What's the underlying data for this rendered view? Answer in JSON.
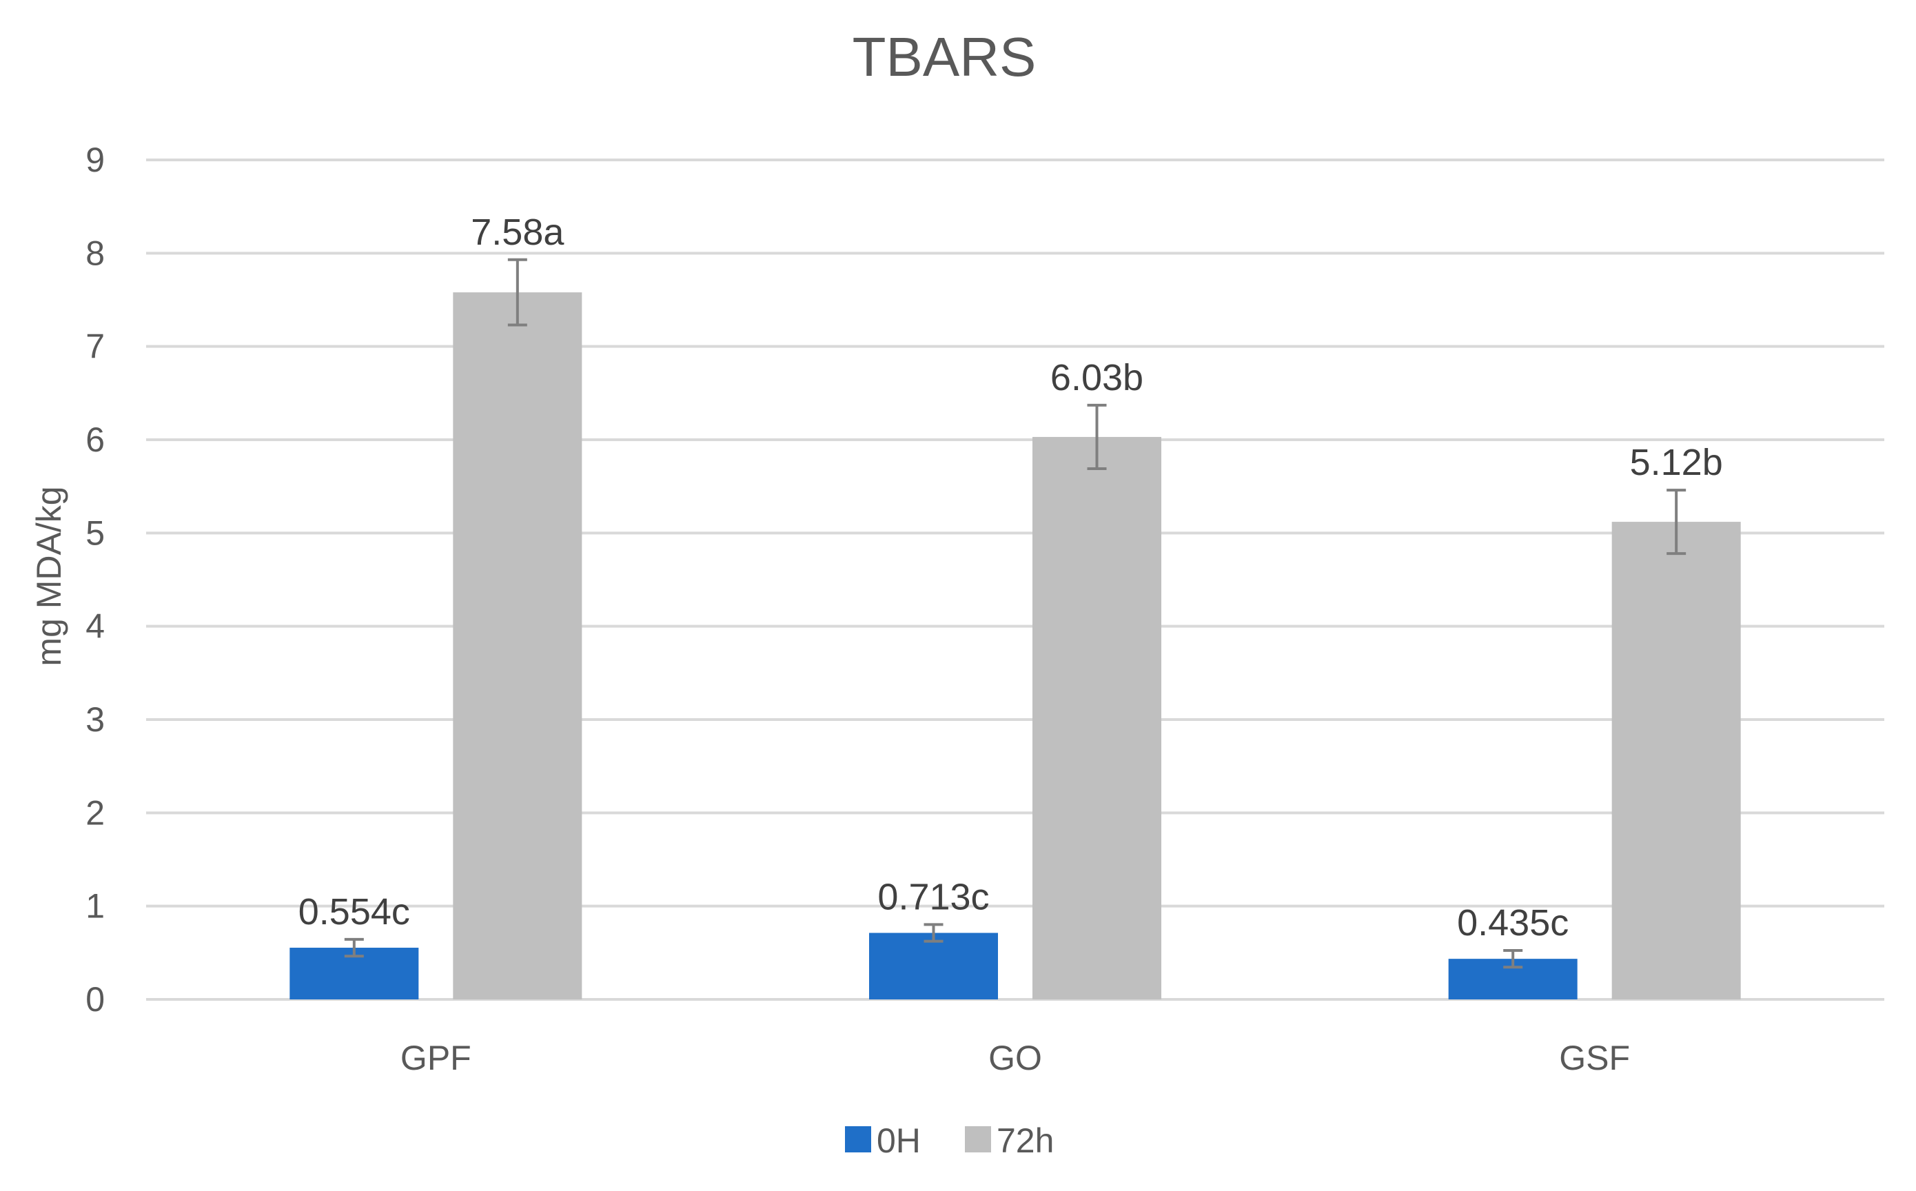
{
  "colors": {
    "series_0H": "#1F6FC8",
    "series_72h": "#BFBFBF",
    "grid": "#D9D9D9",
    "error_bar": "#7F7F7F",
    "text": "#595959"
  },
  "chart_data": {
    "type": "bar",
    "title": "TBARS",
    "xlabel": "",
    "ylabel": "mg MDA/kg",
    "ylim": [
      0,
      9
    ],
    "yticks": [
      0,
      1,
      2,
      3,
      4,
      5,
      6,
      7,
      8,
      9
    ],
    "grid": true,
    "legend_position": "bottom",
    "categories": [
      "GPF",
      "GO",
      "GSF"
    ],
    "series": [
      {
        "name": "0H",
        "color": "#1F6FC8",
        "values": [
          0.554,
          0.713,
          0.435
        ],
        "errors": [
          0.09,
          0.09,
          0.09
        ],
        "labels": [
          "0.554c",
          "0.713c",
          "0.435c"
        ]
      },
      {
        "name": "72h",
        "color": "#BFBFBF",
        "values": [
          7.58,
          6.03,
          5.12
        ],
        "errors": [
          0.35,
          0.34,
          0.34
        ],
        "labels": [
          "7.58a",
          "6.03b",
          "5.12b"
        ]
      }
    ]
  }
}
